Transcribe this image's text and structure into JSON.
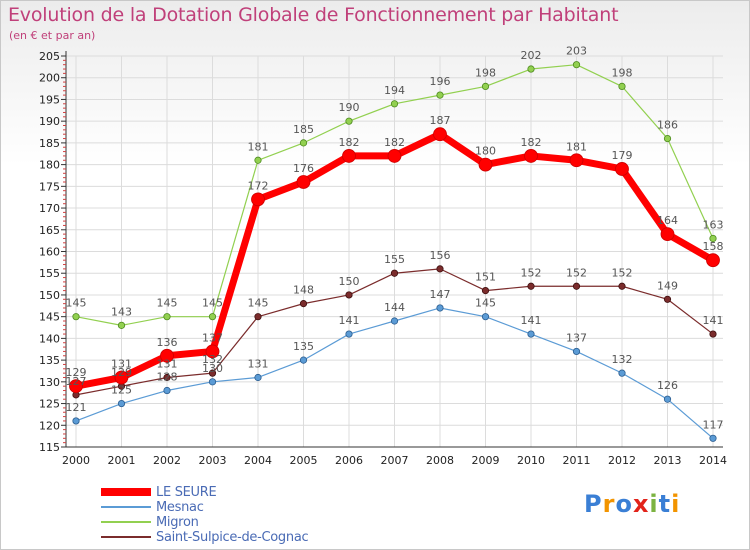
{
  "header": {
    "title": "Evolution de la Dotation Globale de Fonctionnement par Habitant",
    "subtitle": "(en € et par an)"
  },
  "logo": {
    "text": "Proxiti",
    "colors": [
      "#3a7fd5",
      "#f29400",
      "#3a7fd5",
      "#e2231a",
      "#7cb342",
      "#3a7fd5",
      "#f29400"
    ]
  },
  "chart_data": {
    "type": "line",
    "title": "Evolution de la Dotation Globale de Fonctionnement par Habitant",
    "subtitle": "(en € et par an)",
    "xlabel": "",
    "ylabel": "",
    "x": [
      "2000",
      "2001",
      "2002",
      "2003",
      "2004",
      "2005",
      "2006",
      "2007",
      "2008",
      "2009",
      "2010",
      "2011",
      "2012",
      "2013",
      "2014"
    ],
    "ylim": [
      115,
      205
    ],
    "yticks": [
      115,
      120,
      125,
      130,
      135,
      140,
      145,
      150,
      155,
      160,
      165,
      170,
      175,
      180,
      185,
      190,
      195,
      200,
      205
    ],
    "grid": true,
    "legend_position": "bottom-left",
    "series": [
      {
        "name": "LE SEURE",
        "color": "#ff0000",
        "values": [
          129,
          131,
          136,
          137,
          172,
          176,
          182,
          182,
          187,
          180,
          182,
          181,
          179,
          164,
          158
        ]
      },
      {
        "name": "Mesnac",
        "color": "#5b9bd5",
        "values": [
          121,
          125,
          128,
          130,
          131,
          135,
          141,
          144,
          147,
          145,
          141,
          137,
          132,
          126,
          117
        ]
      },
      {
        "name": "Migron",
        "color": "#92d050",
        "values": [
          145,
          143,
          145,
          145,
          181,
          185,
          190,
          194,
          196,
          198,
          202,
          203,
          198,
          186,
          163
        ]
      },
      {
        "name": "Saint-Sulpice-de-Cognac",
        "color": "#7b2c2c",
        "values": [
          127,
          129,
          131,
          132,
          145,
          148,
          150,
          155,
          156,
          151,
          152,
          152,
          152,
          149,
          141
        ]
      }
    ]
  }
}
